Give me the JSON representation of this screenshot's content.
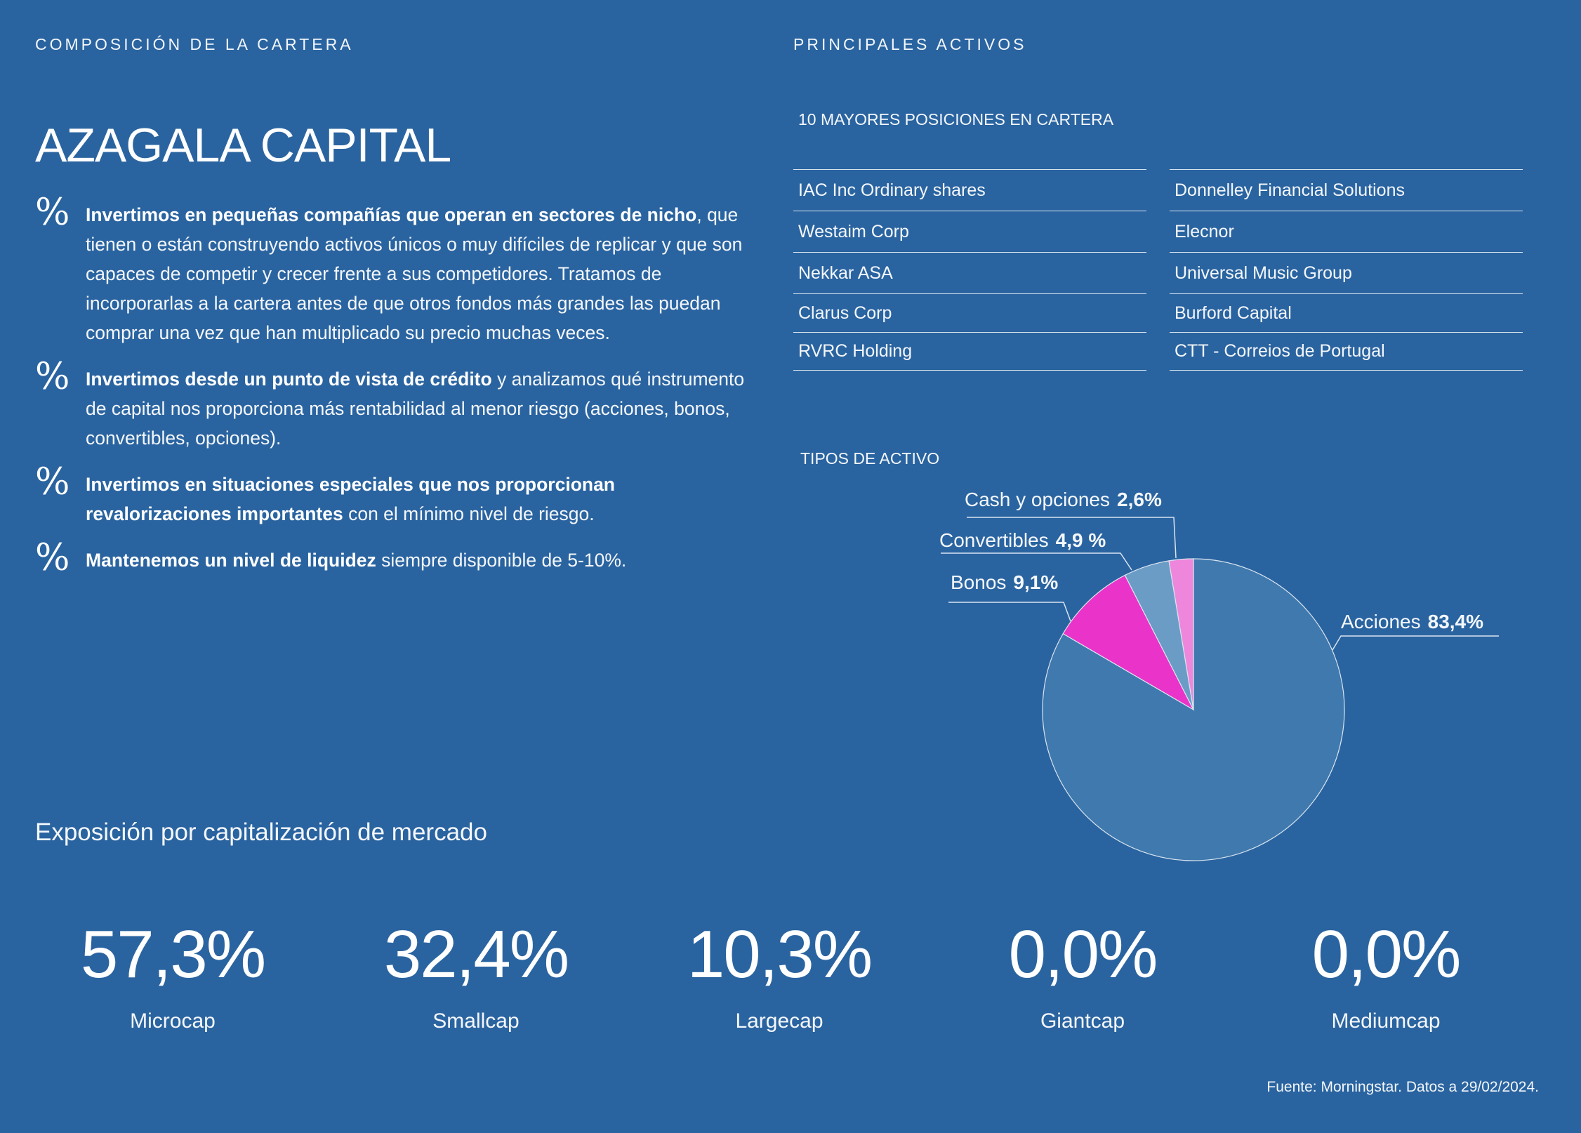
{
  "left_section_label": "COMPOSICIÓN DE LA CARTERA",
  "right_section_label": "PRINCIPALES ACTIVOS",
  "brand_title": "AZAGALA CAPITAL",
  "bullet_icon": "percent-icon",
  "bullets": [
    {
      "bold": "Invertimos en pequeñas compañías que operan en sectores de nicho",
      "text": ", que tienen o están construyendo activos únicos o muy difíciles de replicar y que son capaces de competir y crecer frente a sus competidores. Tratamos de incorporarlas a la cartera antes de que otros fondos más grandes las puedan comprar una vez que han multiplicado su precio muchas veces."
    },
    {
      "bold": "Invertimos desde un punto de vista de crédito",
      "text": " y analizamos qué instrumento de capital nos proporciona más rentabilidad al menor riesgo (acciones, bonos, convertibles, opciones)."
    },
    {
      "bold": "Invertimos en situaciones especiales que nos proporcionan revalorizaciones importantes",
      "text": " con el mínimo nivel de riesgo."
    },
    {
      "bold": "Mantenemos un nivel de liquidez",
      "text": " siempre disponible de 5-10%."
    }
  ],
  "holdings_title": "10 MAYORES POSICIONES EN CARTERA",
  "holdings_left": [
    "IAC Inc Ordinary shares",
    "Westaim Corp",
    "Nekkar ASA",
    "Clarus Corp",
    "RVRC Holding"
  ],
  "holdings_right": [
    "Donnelley Financial Solutions",
    "Elecnor",
    "Universal Music Group",
    "Burford Capital",
    "CTT - Correios de Portugal"
  ],
  "asset_types_title": "TIPOS DE ACTIVO",
  "chart_data": {
    "type": "pie",
    "title": "TIPOS DE ACTIVO",
    "slices": [
      {
        "label": "Acciones",
        "value": 83.4,
        "display": "83,4%",
        "color": "#3f79ad"
      },
      {
        "label": "Bonos",
        "value": 9.1,
        "display": "9,1%",
        "color": "#ea33c9"
      },
      {
        "label": "Convertibles",
        "value": 4.9,
        "display": "4,9 %",
        "color": "#6b9cc6"
      },
      {
        "label": "Cash y opciones",
        "value": 2.6,
        "display": "2,6%",
        "color": "#ee86dc"
      }
    ]
  },
  "exposure_title": "Exposición por capitalización de mercado",
  "exposure": [
    {
      "value": "57,3%",
      "label": "Microcap"
    },
    {
      "value": "32,4%",
      "label": "Smallcap"
    },
    {
      "value": "10,3%",
      "label": "Largecap"
    },
    {
      "value": "0,0%",
      "label": "Giantcap"
    },
    {
      "value": "0,0%",
      "label": "Mediumcap"
    }
  ],
  "footer": "Fuente: Morningstar. Datos a 29/02/2024."
}
